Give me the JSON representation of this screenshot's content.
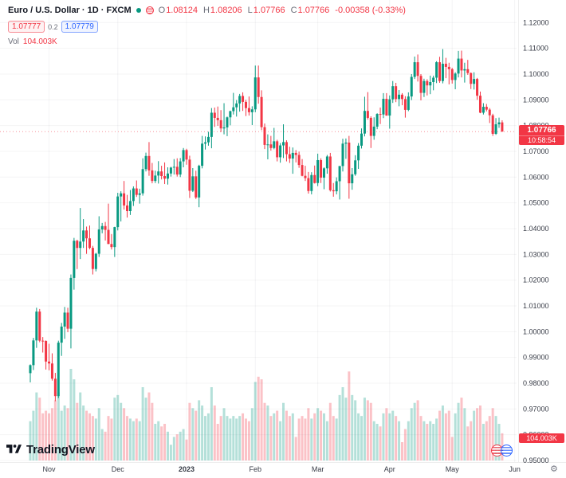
{
  "header": {
    "symbol_title": "Euro / U.S. Dollar · 1D · FXCM",
    "ohlc": {
      "o_label": "O",
      "o": "1.08124",
      "h_label": "H",
      "h": "1.08206",
      "l_label": "L",
      "l": "1.07766",
      "c_label": "C",
      "c": "1.07766",
      "change": "-0.00358 (-0.33%)"
    },
    "bid": "1.07777",
    "spread": "0.2",
    "ask": "1.07779",
    "vol_label": "Vol",
    "vol_value": "104.003K"
  },
  "price_badge": {
    "price": "1.07766",
    "countdown": "10:58:54"
  },
  "vol_badge": {
    "value": "104.003K"
  },
  "footer": {
    "logo_text": "TradingView",
    "gear_icon": "⚙"
  },
  "colors": {
    "up": "#089981",
    "down": "#f23645",
    "vol_up": "rgba(8,153,129,0.30)",
    "vol_down": "rgba(242,54,69,0.30)",
    "axis_text": "#363a45",
    "grid": "rgba(42,46,57,0.05)",
    "accent_blue": "#2962ff"
  },
  "chart_data": {
    "type": "candlestick",
    "title": "Euro / U.S. Dollar",
    "interval": "1D",
    "exchange": "FXCM",
    "legend_position": "top-left",
    "grid": "faint",
    "y_axis": {
      "min": 0.95,
      "max": 1.12,
      "step": 0.01,
      "labels": [
        "1.12000",
        "1.11000",
        "1.10000",
        "1.09000",
        "1.08000",
        "1.07000",
        "1.06000",
        "1.05000",
        "1.04000",
        "1.03000",
        "1.02000",
        "1.01000",
        "1.00000",
        "0.99000",
        "0.98000",
        "0.97000",
        "0.96000",
        "0.95000"
      ]
    },
    "x_ticks": [
      {
        "label": "Nov",
        "index": 6
      },
      {
        "label": "Dec",
        "index": 28
      },
      {
        "label": "2023",
        "index": 50,
        "bold": true
      },
      {
        "label": "Feb",
        "index": 72
      },
      {
        "label": "Mar",
        "index": 92
      },
      {
        "label": "Apr",
        "index": 115
      },
      {
        "label": "May",
        "index": 135
      },
      {
        "label": "Jun",
        "index": 155
      }
    ],
    "last": {
      "open": 1.08124,
      "high": 1.08206,
      "low": 1.07766,
      "close": 1.07766,
      "change": -0.00358,
      "change_pct": -0.33,
      "volume_k": 104.003
    },
    "price_line": 1.07766,
    "volume_unit": "K",
    "candles": [
      [
        0.9839,
        0.9873,
        0.9803,
        0.987,
        150
      ],
      [
        0.987,
        0.9976,
        0.9851,
        0.9966,
        190
      ],
      [
        0.9966,
        1.0093,
        0.9937,
        1.0078,
        260
      ],
      [
        1.0078,
        1.0088,
        0.9959,
        0.9965,
        240
      ],
      [
        0.9965,
        0.9979,
        0.9919,
        0.9964,
        180
      ],
      [
        0.9964,
        0.9966,
        0.9853,
        0.9884,
        190
      ],
      [
        0.9884,
        0.9953,
        0.985,
        0.98765,
        180
      ],
      [
        0.98765,
        0.9916,
        0.981,
        0.98173,
        200
      ],
      [
        0.98173,
        0.984,
        0.973,
        0.97499,
        230
      ],
      [
        0.97499,
        0.9965,
        0.9742,
        0.99574,
        260
      ],
      [
        0.99574,
        1.0034,
        0.9906,
        1.00198,
        190
      ],
      [
        1.00198,
        1.0096,
        0.9972,
        1.0074,
        210
      ],
      [
        1.0074,
        1.0093,
        0.9998,
        1.00115,
        200
      ],
      [
        1.00115,
        1.0222,
        0.9935,
        1.02085,
        350
      ],
      [
        1.02085,
        1.0364,
        1.0163,
        1.03529,
        310
      ],
      [
        1.03529,
        1.0357,
        1.0243,
        1.0325,
        220
      ],
      [
        1.0325,
        1.048,
        1.0282,
        1.03499,
        260
      ],
      [
        1.03499,
        1.0437,
        1.0325,
        1.03929,
        210
      ],
      [
        1.03929,
        1.0408,
        1.0302,
        1.03623,
        190
      ],
      [
        1.03623,
        1.0412,
        1.032,
        1.03252,
        180
      ],
      [
        1.03252,
        1.0333,
        1.0222,
        1.02432,
        170
      ],
      [
        1.02432,
        1.0306,
        1.0234,
        1.03024,
        160
      ],
      [
        1.03024,
        1.0448,
        1.029,
        1.03969,
        200
      ],
      [
        1.03969,
        1.0422,
        1.0382,
        1.04099,
        120
      ],
      [
        1.04099,
        1.0426,
        1.0354,
        1.03952,
        110
      ],
      [
        1.03952,
        1.0497,
        1.034,
        1.03403,
        170
      ],
      [
        1.03403,
        1.0379,
        1.0319,
        1.03283,
        160
      ],
      [
        1.03283,
        1.0407,
        1.029,
        1.04058,
        240
      ],
      [
        1.04058,
        1.0539,
        1.0393,
        1.05248,
        250
      ],
      [
        1.05248,
        1.0545,
        1.0428,
        1.0537,
        220
      ],
      [
        1.0537,
        1.0585,
        1.0474,
        1.049,
        200
      ],
      [
        1.049,
        1.0531,
        1.0443,
        1.0468,
        170
      ],
      [
        1.0468,
        1.055,
        1.0453,
        1.0507,
        160
      ],
      [
        1.0507,
        1.0564,
        1.0488,
        1.0556,
        150
      ],
      [
        1.0556,
        1.0587,
        1.0523,
        1.0531,
        160
      ],
      [
        1.0531,
        1.0555,
        1.0497,
        1.0537,
        150
      ],
      [
        1.0537,
        1.0673,
        1.0528,
        1.0631,
        280
      ],
      [
        1.0631,
        1.0695,
        1.0622,
        1.0682,
        240
      ],
      [
        1.0682,
        1.0736,
        1.0605,
        1.0626,
        260
      ],
      [
        1.0626,
        1.0655,
        1.0576,
        1.0585,
        220
      ],
      [
        1.0585,
        1.0625,
        1.0577,
        1.0606,
        140
      ],
      [
        1.0606,
        1.0662,
        1.0575,
        1.0622,
        150
      ],
      [
        1.0622,
        1.0644,
        1.0591,
        1.0604,
        130
      ],
      [
        1.0604,
        1.0657,
        1.0573,
        1.0594,
        140
      ],
      [
        1.0594,
        1.0638,
        1.0571,
        1.0614,
        110
      ],
      [
        1.0614,
        1.064,
        1.0602,
        1.0637,
        60
      ],
      [
        1.0637,
        1.067,
        1.061,
        1.064,
        90
      ],
      [
        1.064,
        1.0673,
        1.0602,
        1.061,
        100
      ],
      [
        1.061,
        1.0674,
        1.06,
        1.0661,
        110
      ],
      [
        1.0661,
        1.0713,
        1.0638,
        1.0705,
        120
      ],
      [
        1.0705,
        1.071,
        1.0648,
        1.0668,
        80
      ],
      [
        1.0668,
        1.0683,
        1.0519,
        1.0547,
        220
      ],
      [
        1.0547,
        1.0635,
        1.0542,
        1.0603,
        200
      ],
      [
        1.0603,
        1.0625,
        1.0515,
        1.0521,
        190
      ],
      [
        1.0521,
        1.0648,
        1.0483,
        1.0644,
        230
      ],
      [
        1.0644,
        1.076,
        1.0634,
        1.073,
        210
      ],
      [
        1.073,
        1.0758,
        1.0707,
        1.0735,
        170
      ],
      [
        1.0735,
        1.0776,
        1.0722,
        1.0756,
        180
      ],
      [
        1.0756,
        1.0868,
        1.0712,
        1.085,
        280
      ],
      [
        1.085,
        1.087,
        1.0795,
        1.083,
        210
      ],
      [
        1.083,
        1.0874,
        1.0799,
        1.0821,
        140
      ],
      [
        1.0821,
        1.086,
        1.0775,
        1.0789,
        170
      ],
      [
        1.0789,
        1.0887,
        1.0766,
        1.0793,
        200
      ],
      [
        1.0793,
        1.0835,
        1.0759,
        1.0832,
        170
      ],
      [
        1.0832,
        1.0858,
        1.0801,
        1.0856,
        160
      ],
      [
        1.0856,
        1.0927,
        1.0843,
        1.0871,
        170
      ],
      [
        1.0871,
        1.0899,
        1.0835,
        1.0886,
        160
      ],
      [
        1.0886,
        1.0923,
        1.0854,
        1.0915,
        170
      ],
      [
        1.0915,
        1.0929,
        1.0857,
        1.0892,
        180
      ],
      [
        1.0892,
        1.09,
        1.0837,
        1.0868,
        160
      ],
      [
        1.0868,
        1.0913,
        1.0839,
        1.0852,
        150
      ],
      [
        1.0852,
        1.0875,
        1.0802,
        1.0863,
        200
      ],
      [
        1.0863,
        1.1033,
        1.0852,
        1.0987,
        300
      ],
      [
        1.0987,
        1.1033,
        1.0885,
        1.0911,
        320
      ],
      [
        1.0911,
        1.0937,
        1.0782,
        1.0794,
        310
      ],
      [
        1.0794,
        1.0808,
        1.0709,
        1.0725,
        220
      ],
      [
        1.0725,
        1.0766,
        1.0669,
        1.0727,
        210
      ],
      [
        1.0727,
        1.076,
        1.0703,
        1.0713,
        170
      ],
      [
        1.0713,
        1.0791,
        1.0708,
        1.0739,
        180
      ],
      [
        1.0739,
        1.0745,
        1.0661,
        1.0677,
        190
      ],
      [
        1.0677,
        1.0732,
        1.0656,
        1.0723,
        150
      ],
      [
        1.0723,
        1.0805,
        1.0674,
        1.0736,
        220
      ],
      [
        1.0736,
        1.0743,
        1.0661,
        1.0689,
        190
      ],
      [
        1.0689,
        1.0718,
        1.0655,
        1.0672,
        170
      ],
      [
        1.0672,
        1.0715,
        1.0613,
        1.0694,
        180
      ],
      [
        1.0694,
        1.0705,
        1.0657,
        1.0686,
        90
      ],
      [
        1.0686,
        1.0699,
        1.0636,
        1.0647,
        160
      ],
      [
        1.0647,
        1.067,
        1.0603,
        1.0605,
        170
      ],
      [
        1.0605,
        1.0644,
        1.0585,
        1.0596,
        160
      ],
      [
        1.0596,
        1.062,
        1.0536,
        1.0546,
        200
      ],
      [
        1.0546,
        1.0619,
        1.0533,
        1.0608,
        160
      ],
      [
        1.0608,
        1.0645,
        1.0575,
        1.0577,
        180
      ],
      [
        1.0577,
        1.0691,
        1.0565,
        1.0666,
        200
      ],
      [
        1.0666,
        1.0673,
        1.0577,
        1.0598,
        190
      ],
      [
        1.0598,
        1.0638,
        1.0553,
        1.0634,
        180
      ],
      [
        1.0634,
        1.0686,
        1.0613,
        1.068,
        150
      ],
      [
        1.068,
        1.0694,
        1.0544,
        1.0549,
        220
      ],
      [
        1.0549,
        1.0577,
        1.0524,
        1.0545,
        170
      ],
      [
        1.0545,
        1.0599,
        1.0533,
        1.0584,
        160
      ],
      [
        1.0584,
        1.0643,
        1.0513,
        1.0643,
        250
      ],
      [
        1.0643,
        1.0749,
        1.0622,
        1.073,
        280
      ],
      [
        1.073,
        1.075,
        1.0671,
        1.0734,
        240
      ],
      [
        1.0734,
        1.076,
        1.0516,
        1.0576,
        340
      ],
      [
        1.0576,
        1.0635,
        1.0551,
        1.0611,
        250
      ],
      [
        1.0611,
        1.0685,
        1.0605,
        1.0665,
        230
      ],
      [
        1.0665,
        1.0732,
        1.0632,
        1.0722,
        180
      ],
      [
        1.0722,
        1.0789,
        1.0711,
        1.0769,
        170
      ],
      [
        1.0769,
        1.0912,
        1.0758,
        1.0857,
        240
      ],
      [
        1.0857,
        1.093,
        1.0823,
        1.083,
        230
      ],
      [
        1.083,
        1.0836,
        1.0713,
        1.076,
        220
      ],
      [
        1.076,
        1.0832,
        1.0745,
        1.0796,
        150
      ],
      [
        1.0796,
        1.0848,
        1.0786,
        1.0845,
        140
      ],
      [
        1.0845,
        1.087,
        1.0806,
        1.0843,
        130
      ],
      [
        1.0843,
        1.0926,
        1.0829,
        1.0904,
        180
      ],
      [
        1.0904,
        1.0926,
        1.0838,
        1.0839,
        200
      ],
      [
        1.0839,
        1.0917,
        1.0788,
        1.0902,
        180
      ],
      [
        1.0902,
        1.0973,
        1.0888,
        1.0953,
        190
      ],
      [
        1.0953,
        1.0966,
        1.0891,
        1.0903,
        170
      ],
      [
        1.0903,
        1.0938,
        1.0875,
        1.092,
        150
      ],
      [
        1.092,
        1.0926,
        1.0879,
        1.0903,
        70
      ],
      [
        1.0903,
        1.0914,
        1.0831,
        1.0861,
        120
      ],
      [
        1.0861,
        1.0929,
        1.0856,
        1.0913,
        150
      ],
      [
        1.0913,
        1.1,
        1.0899,
        1.0989,
        200
      ],
      [
        1.0989,
        1.1068,
        1.0981,
        1.1046,
        220
      ],
      [
        1.1046,
        1.1076,
        1.0971,
        1.0993,
        230
      ],
      [
        1.0993,
        1.1,
        1.0898,
        1.0927,
        170
      ],
      [
        1.0927,
        1.0982,
        1.0911,
        1.0973,
        150
      ],
      [
        1.0973,
        1.098,
        1.0917,
        1.0956,
        140
      ],
      [
        1.0956,
        1.0994,
        1.0922,
        1.0969,
        150
      ],
      [
        1.0969,
        1.0994,
        1.0937,
        1.0986,
        140
      ],
      [
        1.0986,
        1.105,
        1.0965,
        1.1046,
        160
      ],
      [
        1.1046,
        1.1067,
        1.0966,
        1.0973,
        190
      ],
      [
        1.0973,
        1.1097,
        1.0964,
        1.104,
        210
      ],
      [
        1.104,
        1.1063,
        1.0984,
        1.1028,
        180
      ],
      [
        1.1028,
        1.1044,
        1.096,
        1.1019,
        190
      ],
      [
        1.1019,
        1.1024,
        1.0963,
        1.0977,
        90
      ],
      [
        1.0977,
        1.1007,
        1.0941,
        1.1002,
        180
      ],
      [
        1.1002,
        1.109,
        1.0987,
        1.106,
        220
      ],
      [
        1.106,
        1.1091,
        1.0987,
        1.1014,
        240
      ],
      [
        1.1014,
        1.1044,
        1.0967,
        1.1019,
        200
      ],
      [
        1.1019,
        1.1055,
        1.0997,
        1.1004,
        130
      ],
      [
        1.1004,
        1.1006,
        1.0942,
        1.0962,
        150
      ],
      [
        1.0962,
        1.1007,
        1.094,
        1.0981,
        190
      ],
      [
        1.0981,
        1.0985,
        1.09,
        1.0916,
        200
      ],
      [
        1.0916,
        1.0932,
        1.0848,
        1.085,
        210
      ],
      [
        1.085,
        1.0887,
        1.0843,
        1.0873,
        140
      ],
      [
        1.0873,
        1.0884,
        1.0855,
        1.0862,
        150
      ],
      [
        1.0862,
        1.0868,
        1.081,
        1.084,
        170
      ],
      [
        1.084,
        1.0846,
        1.076,
        1.0768,
        200
      ],
      [
        1.0768,
        1.0829,
        1.0764,
        1.0805,
        170
      ],
      [
        1.0805,
        1.0831,
        1.0791,
        1.08124,
        140
      ],
      [
        1.08124,
        1.08206,
        1.07766,
        1.07766,
        104.003
      ]
    ]
  }
}
